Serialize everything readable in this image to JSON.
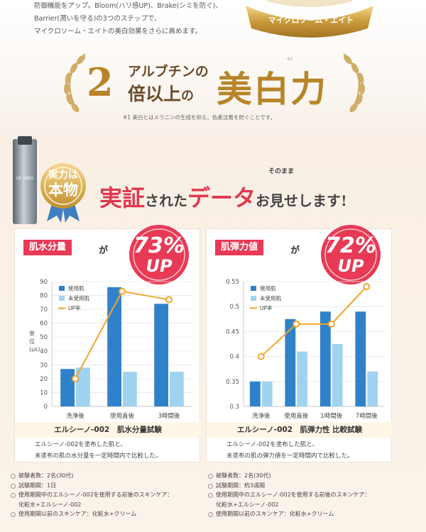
{
  "intro": {
    "lines": [
      "防御機能をアップ。Bloom(ハリ感UP)、Brake(シミを防ぐ)、",
      "Barrier(潤いを守る)の3つのステップで、",
      "マイクロソーム・エイトの美白効果をさらに高めます。"
    ],
    "emblem_label": "マイクロソーム・エイト"
  },
  "headline": {
    "pre": "アルブチンの",
    "number": "2",
    "mid": "倍以上",
    "particle": "の",
    "big": "美白力",
    "mark": "※1",
    "footnote": "※1 美白とはメラニンの生成を抑え、色素沈着を防ぐことです。"
  },
  "proof": {
    "bottle_text": "LE SINO",
    "badge_line1": "実力は",
    "badge_line2": "本物",
    "title_a": "実証",
    "title_b": "された",
    "title_c": "データ",
    "title_d": "お見せします!",
    "tag": "そのまま"
  },
  "cards": [
    {
      "caption": "肌水分量",
      "ga": "が",
      "percent": "73%",
      "up": "UP",
      "test_name": "エルシーノ-002　肌水分量試験",
      "desc1": "エルシーノ-002を塗布した肌と、",
      "desc2": "未塗布の肌の水分量を一定時間内で比較した。",
      "conditions": [
        {
          "text": "被験者数：2名(30代)"
        },
        {
          "text": "試験期間：1日"
        },
        {
          "text": "使用期間中のエルシーノ-002を使用する前後のスキンケア：",
          "cont": "化粧水+エルシーノ-002"
        },
        {
          "text": "使用期間以前のスキンケア：化粧水+クリーム"
        }
      ]
    },
    {
      "caption": "肌弾力値",
      "ga": "が",
      "percent": "72%",
      "up": "UP",
      "test_name": "エルシーノ-002　肌弾力性 比較試験",
      "desc1": "エルシーノ-002を塗布した肌と、",
      "desc2": "未塗布の肌の弾力値を一定時間内で比較した。",
      "conditions": [
        {
          "text": "被験者数：2名(30代)"
        },
        {
          "text": "試験期間：約3週間"
        },
        {
          "text": "使用期間中のエルシーノ-002を使用する前後のスキンケア：",
          "cont": "化粧水+エルシーノ-002"
        },
        {
          "text": "使用期間以前のスキンケア：化粧水+クリーム"
        }
      ]
    }
  ],
  "colors": {
    "used": "#2f82c9",
    "unused": "#9fd3f0",
    "uprate": "#f3a52c",
    "accent": "#e83a55",
    "gold": "#b78428"
  },
  "chart_data": [
    {
      "type": "bar",
      "ylabel": "単位(μs)",
      "categories": [
        "洗浄後",
        "使用直後",
        "3時間後"
      ],
      "series": [
        {
          "name": "使用肌",
          "values": [
            27,
            86,
            74
          ]
        },
        {
          "name": "未使用肌",
          "values": [
            28,
            25,
            25
          ]
        }
      ],
      "line_series": {
        "name": "UP率",
        "values": [
          20,
          83,
          77
        ]
      },
      "ylim": [
        0,
        90
      ],
      "yticks": [
        "0",
        "10",
        "20",
        "30",
        "40",
        "50",
        "60",
        "70",
        "80",
        "90"
      ],
      "legend": "top-left"
    },
    {
      "type": "bar",
      "ylabel": "",
      "categories": [
        "洗浄後",
        "使用直後",
        "1時間後",
        "7時間後"
      ],
      "series": [
        {
          "name": "使用肌",
          "values": [
            0.35,
            0.475,
            0.49,
            0.49
          ]
        },
        {
          "name": "未使用肌",
          "values": [
            0.35,
            0.41,
            0.425,
            0.37
          ]
        }
      ],
      "line_series": {
        "name": "UP率",
        "values": [
          0.4,
          0.465,
          0.465,
          0.54
        ]
      },
      "ylim": [
        0.3,
        0.55
      ],
      "yticks": [
        "0.3",
        "0.35",
        "0.4",
        "0.45",
        "0.5",
        "0.55"
      ],
      "legend": "top-left"
    }
  ]
}
